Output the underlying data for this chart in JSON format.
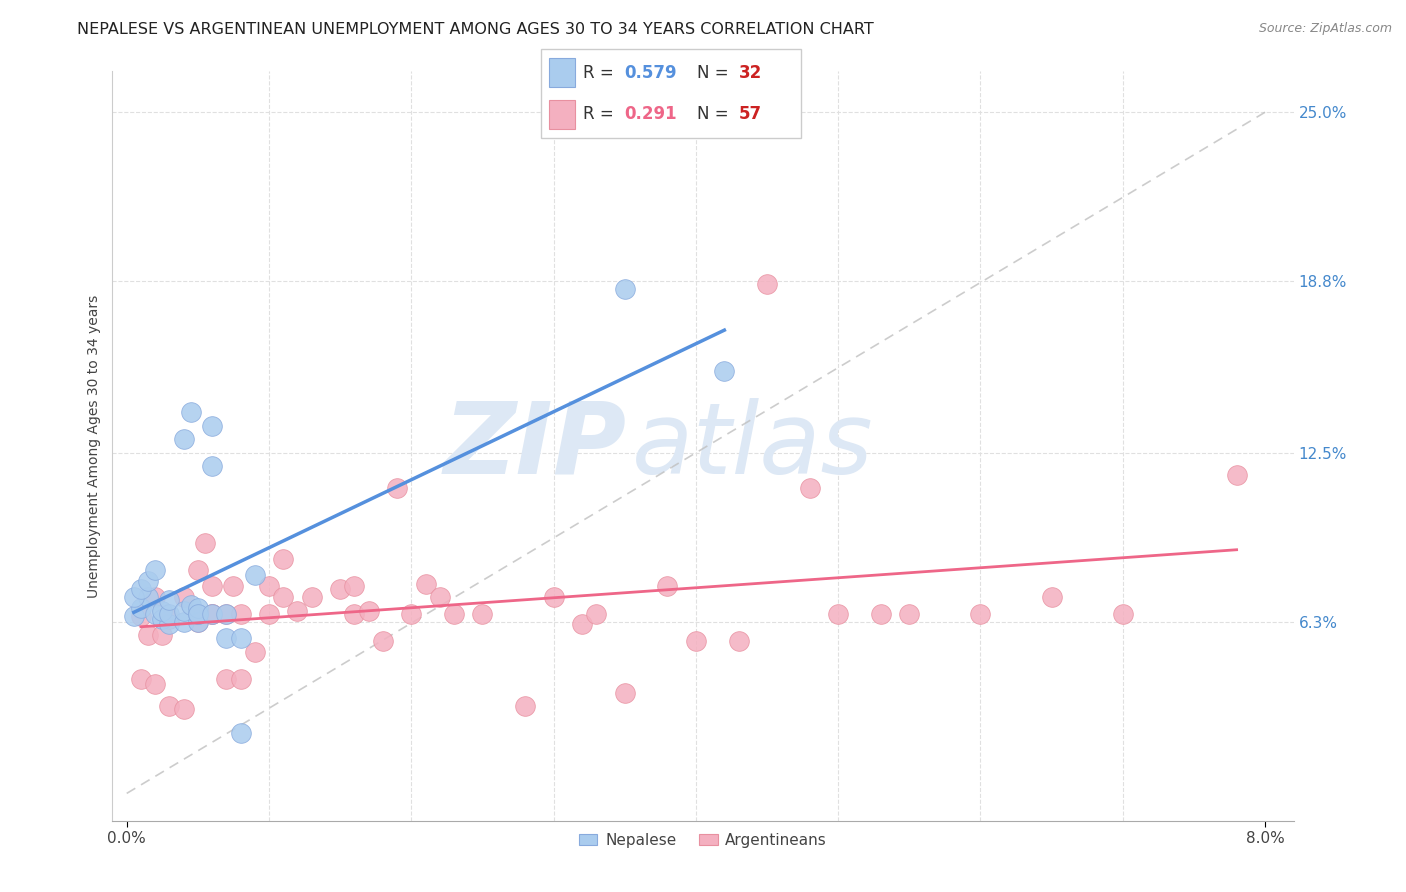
{
  "title": "NEPALESE VS ARGENTINEAN UNEMPLOYMENT AMONG AGES 30 TO 34 YEARS CORRELATION CHART",
  "source": "Source: ZipAtlas.com",
  "xlabel": "",
  "ylabel": "Unemployment Among Ages 30 to 34 years",
  "xlim": [
    -0.001,
    0.082
  ],
  "ylim": [
    -0.01,
    0.265
  ],
  "xticks": [
    0.0,
    0.08
  ],
  "xticklabels": [
    "0.0%",
    "8.0%"
  ],
  "ytick_positions": [
    0.063,
    0.125,
    0.188,
    0.25
  ],
  "yticklabels": [
    "6.3%",
    "12.5%",
    "18.8%",
    "25.0%"
  ],
  "background_color": "#ffffff",
  "grid_color": "#e0e0e0",
  "nepalese_color": "#aaccee",
  "argentinean_color": "#f4b0c0",
  "nepalese_edge_color": "#88aadd",
  "argentinean_edge_color": "#e890a0",
  "nepalese_line_color": "#5590dd",
  "argentinean_line_color": "#ee6688",
  "reference_line_color": "#c0c0c0",
  "nepalese_x": [
    0.0005,
    0.001,
    0.0015,
    0.002,
    0.0005,
    0.001,
    0.0015,
    0.002,
    0.0025,
    0.003,
    0.0025,
    0.003,
    0.003,
    0.004,
    0.004,
    0.0045,
    0.004,
    0.0045,
    0.005,
    0.005,
    0.005,
    0.005,
    0.006,
    0.006,
    0.006,
    0.007,
    0.007,
    0.008,
    0.008,
    0.009,
    0.035,
    0.042
  ],
  "nepalese_y": [
    0.065,
    0.068,
    0.072,
    0.066,
    0.072,
    0.075,
    0.078,
    0.082,
    0.064,
    0.062,
    0.067,
    0.066,
    0.071,
    0.063,
    0.067,
    0.069,
    0.13,
    0.14,
    0.063,
    0.066,
    0.068,
    0.066,
    0.066,
    0.12,
    0.135,
    0.066,
    0.057,
    0.057,
    0.022,
    0.08,
    0.185,
    0.155
  ],
  "argentinean_x": [
    0.001,
    0.001,
    0.0015,
    0.002,
    0.002,
    0.0025,
    0.003,
    0.003,
    0.004,
    0.004,
    0.005,
    0.005,
    0.005,
    0.0055,
    0.006,
    0.006,
    0.006,
    0.007,
    0.007,
    0.0075,
    0.008,
    0.008,
    0.009,
    0.01,
    0.01,
    0.011,
    0.011,
    0.012,
    0.013,
    0.015,
    0.016,
    0.016,
    0.017,
    0.018,
    0.019,
    0.02,
    0.021,
    0.022,
    0.023,
    0.025,
    0.028,
    0.03,
    0.032,
    0.033,
    0.035,
    0.038,
    0.04,
    0.043,
    0.045,
    0.048,
    0.05,
    0.053,
    0.055,
    0.06,
    0.065,
    0.07,
    0.078
  ],
  "argentinean_y": [
    0.042,
    0.065,
    0.058,
    0.04,
    0.072,
    0.058,
    0.064,
    0.032,
    0.072,
    0.031,
    0.063,
    0.066,
    0.082,
    0.092,
    0.066,
    0.066,
    0.076,
    0.042,
    0.066,
    0.076,
    0.042,
    0.066,
    0.052,
    0.066,
    0.076,
    0.086,
    0.072,
    0.067,
    0.072,
    0.075,
    0.066,
    0.076,
    0.067,
    0.056,
    0.112,
    0.066,
    0.077,
    0.072,
    0.066,
    0.066,
    0.032,
    0.072,
    0.062,
    0.066,
    0.037,
    0.076,
    0.056,
    0.056,
    0.187,
    0.112,
    0.066,
    0.066,
    0.066,
    0.066,
    0.072,
    0.066,
    0.117
  ],
  "watermark_zip": "ZIP",
  "watermark_atlas": "atlas",
  "watermark_color": "#dde8f5",
  "title_fontsize": 11.5,
  "axis_label_fontsize": 10,
  "tick_fontsize": 11,
  "tick_color": "#4488cc",
  "legend_fontsize": 12,
  "legend_nepalese_R": "0.579",
  "legend_nepalese_N": "32",
  "legend_argentinean_R": "0.291",
  "legend_argentinean_N": "57"
}
